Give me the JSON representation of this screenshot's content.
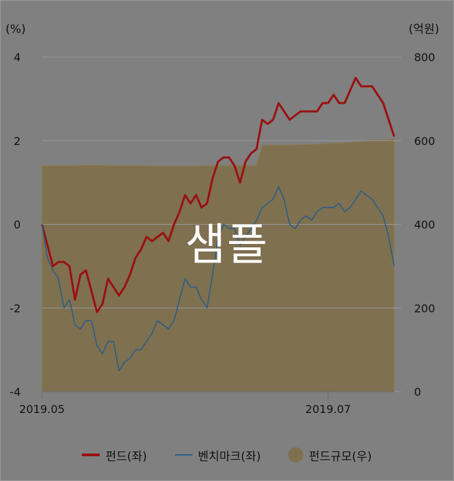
{
  "chart_data": {
    "type": "line",
    "y_left_unit": "(%)",
    "y_right_unit": "(억원)",
    "y_left_ticks": [
      "4",
      "2",
      "0",
      "-2",
      "-4"
    ],
    "y_right_ticks": [
      "800",
      "600",
      "400",
      "200",
      "0"
    ],
    "ylim_left": [
      -4,
      4
    ],
    "ylim_right": [
      0,
      800
    ],
    "x_tick_labels": [
      "2019.05",
      "2019.07"
    ],
    "x_tick_positions": [
      0,
      52
    ],
    "x_count": 65,
    "grid": true,
    "legend_position": "bottom",
    "series": [
      {
        "name": "펀드(좌)",
        "axis": "left",
        "color": "#9b1010",
        "values": [
          0,
          -0.5,
          -1.0,
          -0.9,
          -0.9,
          -1.0,
          -1.8,
          -1.2,
          -1.1,
          -1.6,
          -2.1,
          -1.9,
          -1.3,
          -1.5,
          -1.7,
          -1.5,
          -1.2,
          -0.8,
          -0.6,
          -0.3,
          -0.4,
          -0.3,
          -0.2,
          -0.4,
          0.0,
          0.3,
          0.7,
          0.5,
          0.7,
          0.4,
          0.5,
          1.1,
          1.5,
          1.6,
          1.6,
          1.4,
          1.0,
          1.5,
          1.7,
          1.8,
          2.5,
          2.4,
          2.5,
          2.9,
          2.7,
          2.5,
          2.6,
          2.7,
          2.7,
          2.7,
          2.7,
          2.9,
          2.9,
          3.1,
          2.9,
          2.9,
          3.2,
          3.5,
          3.3,
          3.3,
          3.3,
          3.1,
          2.9,
          2.5,
          2.1
        ]
      },
      {
        "name": "벤치마크(좌)",
        "axis": "left",
        "color": "#2b5d86",
        "values": [
          0,
          -0.8,
          -1.1,
          -1.3,
          -2.0,
          -1.8,
          -2.4,
          -2.5,
          -2.3,
          -2.3,
          -2.9,
          -3.1,
          -2.8,
          -2.8,
          -3.5,
          -3.3,
          -3.2,
          -3.0,
          -3.0,
          -2.8,
          -2.6,
          -2.3,
          -2.4,
          -2.5,
          -2.3,
          -1.8,
          -1.3,
          -1.5,
          -1.5,
          -1.8,
          -2.0,
          -1.2,
          -0.3,
          0.0,
          -0.1,
          -0.1,
          -0.5,
          -0.3,
          -0.1,
          0.1,
          0.4,
          0.5,
          0.6,
          0.9,
          0.6,
          0.0,
          -0.1,
          0.1,
          0.2,
          0.1,
          0.3,
          0.4,
          0.4,
          0.4,
          0.5,
          0.3,
          0.4,
          0.6,
          0.8,
          0.7,
          0.6,
          0.4,
          0.2,
          -0.3,
          -1.0
        ]
      },
      {
        "name": "펀드규모(우)",
        "axis": "right",
        "type": "area",
        "color": "#7f7050",
        "values": [
          540,
          540,
          540,
          540,
          540,
          540,
          540,
          541,
          541,
          541,
          541,
          541,
          540,
          540,
          540,
          540,
          540,
          540,
          540,
          540,
          539,
          539,
          539,
          539,
          539,
          539,
          539,
          539,
          539,
          540,
          540,
          540,
          540,
          540,
          540,
          540,
          540,
          540,
          540,
          540,
          589,
          589,
          589,
          589,
          589,
          589,
          590,
          590,
          591,
          591,
          592,
          592,
          593,
          594,
          594,
          595,
          596,
          597,
          598,
          600,
          601,
          601,
          602,
          603,
          604
        ]
      }
    ]
  },
  "watermark": "샘플"
}
